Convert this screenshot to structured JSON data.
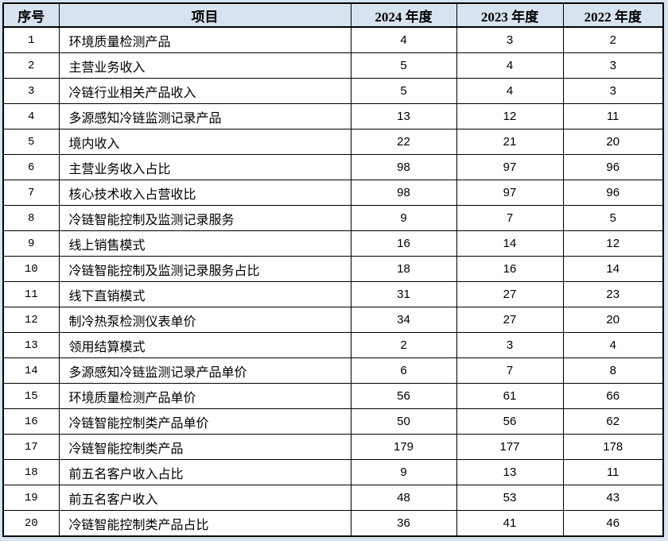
{
  "page": {
    "background_color": "#d7e4f0",
    "border_color": "#000000",
    "text_color": "#000000"
  },
  "table": {
    "columns": [
      {
        "key": "index",
        "label": "序号"
      },
      {
        "key": "item",
        "label": "项目"
      },
      {
        "key": "y2024",
        "label": "2024 年度"
      },
      {
        "key": "y2023",
        "label": "2023 年度"
      },
      {
        "key": "y2022",
        "label": "2022 年度"
      }
    ],
    "rows": [
      {
        "index": "1",
        "item": "环境质量检测产品",
        "y2024": "4",
        "y2023": "3",
        "y2022": "2"
      },
      {
        "index": "2",
        "item": "主营业务收入",
        "y2024": "5",
        "y2023": "4",
        "y2022": "3"
      },
      {
        "index": "3",
        "item": "冷链行业相关产品收入",
        "y2024": "5",
        "y2023": "4",
        "y2022": "3"
      },
      {
        "index": "4",
        "item": "多源感知冷链监测记录产品",
        "y2024": "13",
        "y2023": "12",
        "y2022": "11"
      },
      {
        "index": "5",
        "item": "境内收入",
        "y2024": "22",
        "y2023": "21",
        "y2022": "20"
      },
      {
        "index": "6",
        "item": "主营业务收入占比",
        "y2024": "98",
        "y2023": "97",
        "y2022": "96"
      },
      {
        "index": "7",
        "item": "核心技术收入占营收比",
        "y2024": "98",
        "y2023": "97",
        "y2022": "96"
      },
      {
        "index": "8",
        "item": "冷链智能控制及监测记录服务",
        "y2024": "9",
        "y2023": "7",
        "y2022": "5"
      },
      {
        "index": "9",
        "item": "线上销售模式",
        "y2024": "16",
        "y2023": "14",
        "y2022": "12"
      },
      {
        "index": "10",
        "item": "冷链智能控制及监测记录服务占比",
        "y2024": "18",
        "y2023": "16",
        "y2022": "14"
      },
      {
        "index": "11",
        "item": "线下直销模式",
        "y2024": "31",
        "y2023": "27",
        "y2022": "23"
      },
      {
        "index": "12",
        "item": "制冷热泵检测仪表单价",
        "y2024": "34",
        "y2023": "27",
        "y2022": "20"
      },
      {
        "index": "13",
        "item": "领用结算模式",
        "y2024": "2",
        "y2023": "3",
        "y2022": "4"
      },
      {
        "index": "14",
        "item": "多源感知冷链监测记录产品单价",
        "y2024": "6",
        "y2023": "7",
        "y2022": "8"
      },
      {
        "index": "15",
        "item": "环境质量检测产品单价",
        "y2024": "56",
        "y2023": "61",
        "y2022": "66"
      },
      {
        "index": "16",
        "item": "冷链智能控制类产品单价",
        "y2024": "50",
        "y2023": "56",
        "y2022": "62"
      },
      {
        "index": "17",
        "item": "冷链智能控制类产品",
        "y2024": "179",
        "y2023": "177",
        "y2022": "178"
      },
      {
        "index": "18",
        "item": "前五名客户收入占比",
        "y2024": "9",
        "y2023": "13",
        "y2022": "11"
      },
      {
        "index": "19",
        "item": "前五名客户收入",
        "y2024": "48",
        "y2023": "53",
        "y2022": "43"
      },
      {
        "index": "20",
        "item": "冷链智能控制类产品占比",
        "y2024": "36",
        "y2023": "41",
        "y2022": "46"
      }
    ]
  }
}
